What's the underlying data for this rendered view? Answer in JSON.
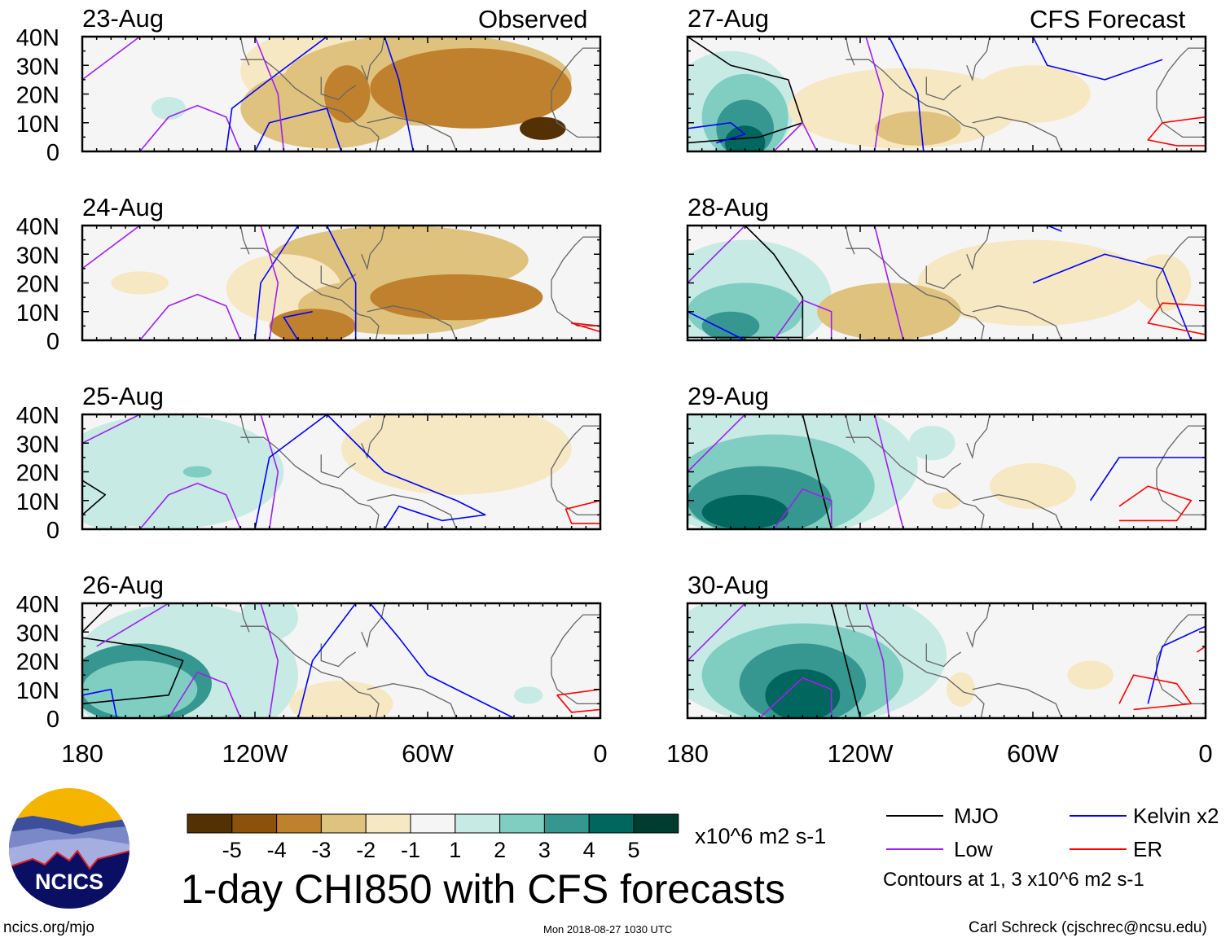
{
  "panel_labels": {
    "observed": "Observed",
    "forecast": "CFS Forecast"
  },
  "chart_data": {
    "type": "heatmap",
    "title": "1-day CHI850 with CFS forecasts",
    "panels": [
      {
        "date": "23-Aug",
        "kind": "Observed"
      },
      {
        "date": "24-Aug",
        "kind": "Observed"
      },
      {
        "date": "25-Aug",
        "kind": "Observed"
      },
      {
        "date": "26-Aug",
        "kind": "Observed"
      },
      {
        "date": "27-Aug",
        "kind": "CFS Forecast"
      },
      {
        "date": "28-Aug",
        "kind": "CFS Forecast"
      },
      {
        "date": "29-Aug",
        "kind": "CFS Forecast"
      },
      {
        "date": "30-Aug",
        "kind": "CFS Forecast"
      }
    ],
    "y_ticks": [
      "40N",
      "30N",
      "20N",
      "10N",
      "0"
    ],
    "x_ticks": [
      "180",
      "120W",
      "60W",
      "0"
    ],
    "lon_range": [
      -180,
      0
    ],
    "lat_range": [
      0,
      40
    ],
    "colorbar": {
      "ticks": [
        "-5",
        "-4",
        "-3",
        "-2",
        "-1",
        "1",
        "2",
        "3",
        "4",
        "5"
      ],
      "colors": [
        "#543005",
        "#8c510a",
        "#bf812d",
        "#dfc27d",
        "#f6e8c3",
        "#f5f5f5",
        "#c7eae5",
        "#80cdc1",
        "#35978f",
        "#01665e",
        "#003c30"
      ],
      "units": "x10^6 m2 s-1"
    },
    "legend": [
      {
        "name": "MJO",
        "color": "#000000"
      },
      {
        "name": "Kelvin x2",
        "color": "#0000ff"
      },
      {
        "name": "Low",
        "color": "#a020f0"
      },
      {
        "name": "ER",
        "color": "#ff0000"
      }
    ],
    "contour_note": "Contours at 1, 3 x10^6 m2 s-1"
  },
  "footer": {
    "logo_text": "NCICS",
    "url": "ncics.org/mjo",
    "timestamp": "Mon 2018-08-27 1030 UTC",
    "author": "Carl Schreck (cjschrec@ncsu.edu)"
  }
}
